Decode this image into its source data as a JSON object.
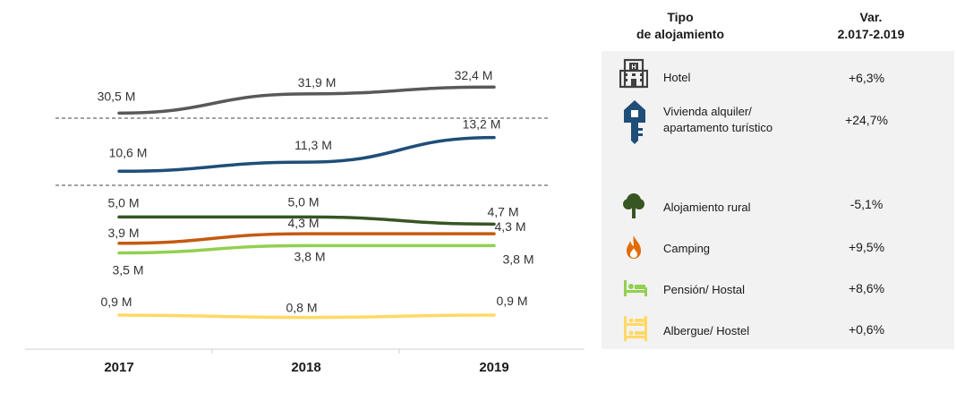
{
  "chart_data": {
    "type": "line",
    "categories": [
      "2017",
      "2018",
      "2019"
    ],
    "series": [
      {
        "values": [
          30.5,
          31.9,
          32.4
        ],
        "labels": [
          "30,5 M",
          "31,9 M",
          "32,4 M"
        ],
        "color": "#595959"
      },
      {
        "values": [
          10.6,
          11.3,
          13.2
        ],
        "labels": [
          "10,6 M",
          "11,3 M",
          "13,2 M"
        ],
        "color": "#1f4e79"
      },
      {
        "values": [
          5.0,
          5.0,
          4.7
        ],
        "labels": [
          "5,0 M",
          "5,0 M",
          "4,7 M"
        ],
        "color": "#375623"
      },
      {
        "values": [
          3.9,
          4.3,
          4.3
        ],
        "labels": [
          "3,9 M",
          "4,3 M",
          "4,3 M"
        ],
        "color": "#c55a11"
      },
      {
        "values": [
          3.5,
          3.8,
          3.8
        ],
        "labels": [
          "3,5 M",
          "3,8 M",
          "3,8 M"
        ],
        "color": "#92d050"
      },
      {
        "values": [
          0.9,
          0.8,
          0.9
        ],
        "labels": [
          "0,9 M",
          "0,8 M",
          "0,9 M"
        ],
        "color": "#ffd966"
      }
    ],
    "broken_axis": true,
    "grid": false
  },
  "table": {
    "header_tipo": [
      "Tipo",
      "de alojamiento"
    ],
    "header_var": [
      "Var.",
      "2.017-2.019"
    ],
    "rows": [
      {
        "icon": "hotel-icon",
        "label": "Hotel",
        "value": "+6,3%",
        "color": "#404040"
      },
      {
        "icon": "key-house-icon",
        "label": "Vivienda alquiler/\napartamento turístico",
        "value": "+24,7%",
        "color": "#1f4e79"
      },
      {
        "icon": "tree-icon",
        "label": "Alojamiento  rural",
        "value": "-5,1%",
        "color": "#375623"
      },
      {
        "icon": "flame-icon",
        "label": "Camping",
        "value": "+9,5%",
        "color": "#e26b0a"
      },
      {
        "icon": "bed-icon",
        "label": "Pensión/  Hostal",
        "value": "+8,6%",
        "color": "#92d050"
      },
      {
        "icon": "bunk-bed-icon",
        "label": "Albergue/  Hostel",
        "value": "+0,6%",
        "color": "#ffd966"
      }
    ]
  }
}
